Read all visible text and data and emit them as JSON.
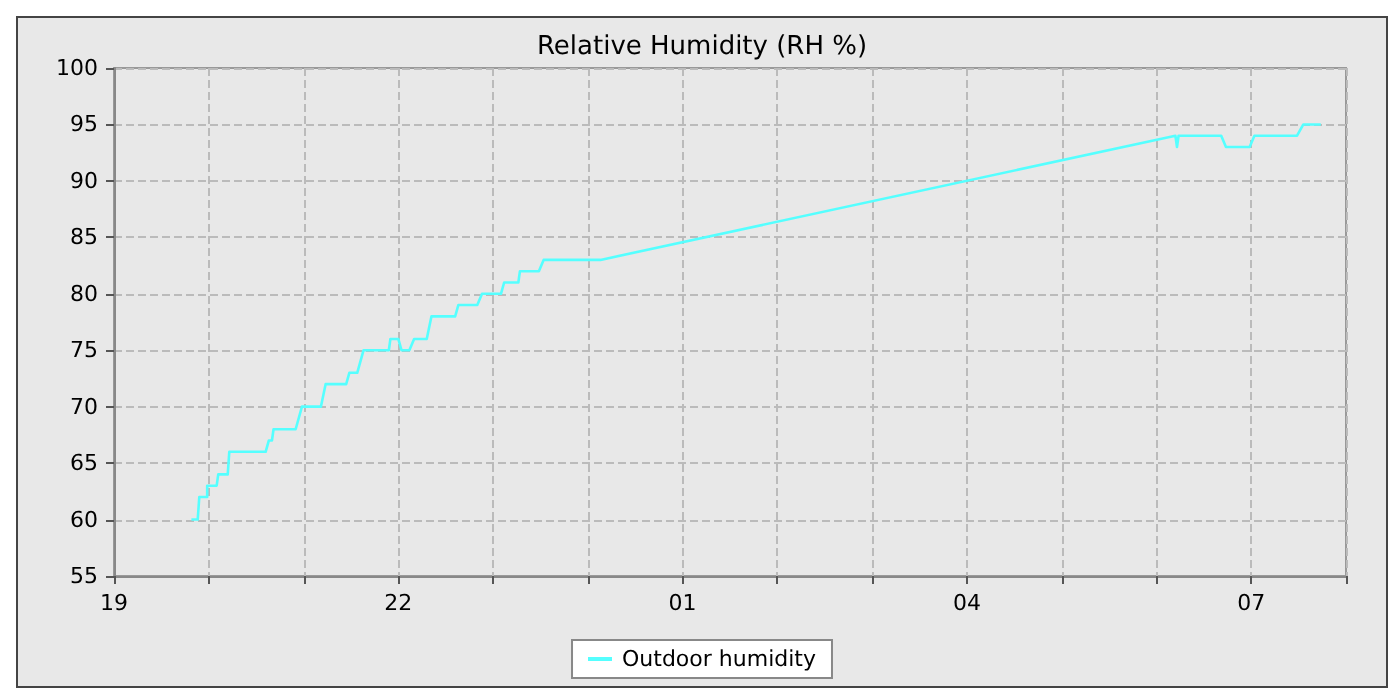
{
  "chart_data": {
    "type": "line",
    "title": "Relative Humidity (RH %)",
    "x": [
      "--01-01T19:49",
      "--01-01T19:53",
      "--01-01T19:54",
      "--01-01T19:59",
      "--01-01T19:59",
      "--01-01T20:05",
      "--01-01T20:06",
      "--01-01T20:12",
      "--01-01T20:13",
      "--01-01T20:18",
      "--01-01T20:36",
      "--01-01T20:38",
      "--01-01T20:40",
      "--01-01T20:41",
      "--01-01T20:55",
      "--01-01T20:59",
      "--01-01T21:11",
      "--01-01T21:14",
      "--01-01T21:27",
      "--01-01T21:29",
      "--01-01T21:34",
      "--01-01T21:38",
      "--01-01T21:54",
      "--01-01T21:55",
      "--01-01T22:00",
      "--01-01T22:02",
      "--01-01T22:07",
      "--01-01T22:10",
      "--01-01T22:18",
      "--01-01T22:21",
      "--01-01T22:36",
      "--01-01T22:38",
      "--01-01T22:50",
      "--01-01T22:53",
      "--01-01T23:05",
      "--01-01T23:07",
      "--01-01T23:16",
      "--01-01T23:17",
      "--01-01T23:29",
      "--01-01T23:32",
      "--01-02T00:08",
      "--01-02T06:12",
      "--01-02T06:13",
      "--01-02T06:14",
      "--01-02T06:41",
      "--01-02T06:44",
      "--01-02T06:59",
      "--01-02T07:02",
      "--01-02T07:29",
      "--01-02T07:33",
      "--01-02T07:44"
    ],
    "series": [
      {
        "name": "Outdoor humidity",
        "color": "#55ffff",
        "values": [
          60,
          60,
          62,
          62,
          63,
          63,
          64,
          64,
          66,
          66,
          66,
          67,
          67,
          68,
          68,
          70,
          70,
          72,
          72,
          73,
          73,
          75,
          75,
          76,
          76,
          75,
          75,
          76,
          76,
          78,
          78,
          79,
          79,
          80,
          80,
          81,
          81,
          82,
          82,
          83,
          83,
          94,
          93,
          94,
          94,
          93,
          93,
          94,
          94,
          95,
          95
        ]
      }
    ],
    "xlim": [
      "--01-01T19:00",
      "--01-02T08:00"
    ],
    "xticks": [
      {
        "value": "--01-01T19:00",
        "label": "19"
      },
      {
        "value": "--01-01T20:00",
        "label": null
      },
      {
        "value": "--01-01T21:00",
        "label": null
      },
      {
        "value": "--01-01T22:00",
        "label": "22"
      },
      {
        "value": "--01-01T23:00",
        "label": null
      },
      {
        "value": "--01-02T00:00",
        "label": null
      },
      {
        "value": "--01-02T01:00",
        "label": "01"
      },
      {
        "value": "--01-02T02:00",
        "label": null
      },
      {
        "value": "--01-02T03:00",
        "label": null
      },
      {
        "value": "--01-02T04:00",
        "label": "04"
      },
      {
        "value": "--01-02T05:00",
        "label": null
      },
      {
        "value": "--01-02T06:00",
        "label": null
      },
      {
        "value": "--01-02T07:00",
        "label": "07"
      },
      {
        "value": "--01-02T08:00",
        "label": null
      }
    ],
    "ylim": [
      55,
      100
    ],
    "yticks": [
      55,
      60,
      65,
      70,
      75,
      80,
      85,
      90,
      95,
      100
    ],
    "grid": true,
    "legend": "bottom",
    "marker": "none",
    "line_style": "solid"
  }
}
